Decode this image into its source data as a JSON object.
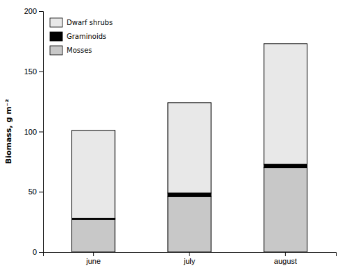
{
  "chart_data": {
    "type": "bar",
    "stacked": true,
    "categories": [
      "june",
      "july",
      "august"
    ],
    "series": [
      {
        "name": "Mosses",
        "color": "#c8c8c8",
        "values": [
          27,
          46,
          70
        ]
      },
      {
        "name": "Graminoids",
        "color": "#000000",
        "values": [
          1,
          3,
          3
        ]
      },
      {
        "name": "Dwarf shrubs",
        "color": "#e8e8e8",
        "values": [
          73,
          75,
          100
        ]
      }
    ],
    "ylabel": "Biomass, g m⁻²",
    "ylim": [
      0,
      200
    ],
    "yticks": [
      0,
      50,
      100,
      150,
      200
    ],
    "grid": false,
    "legend": "upper left"
  }
}
